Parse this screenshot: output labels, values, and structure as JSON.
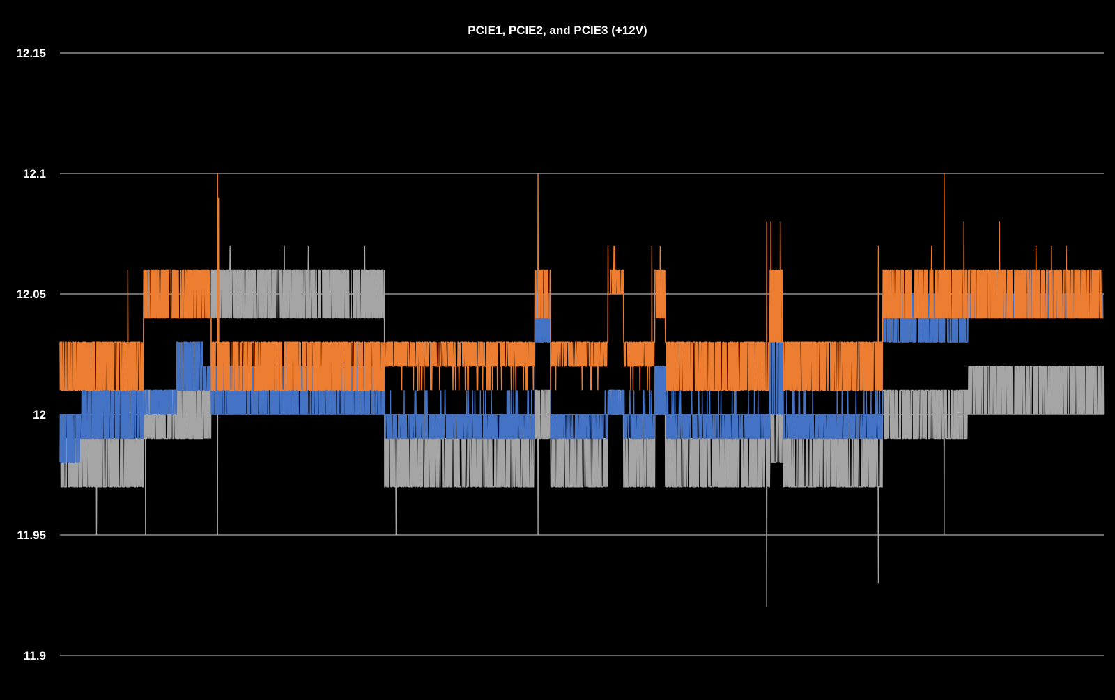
{
  "chart_data": {
    "type": "line",
    "title": "PCIE1, PCIE2, and PCIE3 (+12V)",
    "xlabel": "",
    "ylabel": "",
    "ylim": [
      11.9,
      12.15
    ],
    "yticks": [
      11.9,
      11.95,
      12,
      12.05,
      12.1,
      12.15
    ],
    "ytick_labels": [
      "11.9",
      "11.95",
      "12",
      "12.05",
      "12.1",
      "12.15"
    ],
    "grid": "horizontal",
    "legend": "none",
    "background": "#000000",
    "text_color": "#ffffff",
    "gridline_color": "#d9d9d9",
    "x_range": [
      0,
      1000
    ],
    "segments": [
      {
        "start": 0,
        "end": 20,
        "levels": {
          "orange": [
            12.01,
            12.03
          ],
          "blue": [
            11.98,
            12.0
          ],
          "gray": [
            11.97,
            11.99
          ]
        }
      },
      {
        "start": 20,
        "end": 47,
        "levels": {
          "orange": [
            12.01,
            12.03
          ],
          "blue": [
            11.99,
            12.01
          ],
          "gray": [
            11.97,
            11.99
          ]
        }
      },
      {
        "start": 47,
        "end": 70,
        "levels": {
          "orange": [
            12.01,
            12.03
          ],
          "blue": [
            11.99,
            12.01
          ],
          "gray": [
            11.97,
            11.99
          ]
        }
      },
      {
        "start": 70,
        "end": 80,
        "levels": {
          "orange": [
            12.01,
            12.03
          ],
          "blue": [
            11.99,
            12.01
          ],
          "gray": [
            11.97,
            11.99
          ]
        }
      },
      {
        "start": 80,
        "end": 112,
        "levels": {
          "orange": [
            12.04,
            12.06
          ],
          "blue": [
            12.0,
            12.01
          ],
          "gray": [
            11.99,
            12.01
          ]
        }
      },
      {
        "start": 112,
        "end": 137,
        "levels": {
          "orange": [
            12.04,
            12.06
          ],
          "blue": [
            12.01,
            12.03
          ],
          "gray": [
            11.99,
            12.01
          ]
        }
      },
      {
        "start": 137,
        "end": 145,
        "levels": {
          "orange": [
            12.04,
            12.06
          ],
          "blue": [
            12.01,
            12.02
          ],
          "gray": [
            11.99,
            12.01
          ]
        }
      },
      {
        "start": 145,
        "end": 159,
        "levels": {
          "orange": [
            12.01,
            12.03
          ],
          "blue": [
            12.0,
            12.02
          ],
          "gray": [
            12.04,
            12.06
          ]
        }
      },
      {
        "start": 159,
        "end": 311,
        "levels": {
          "orange": [
            12.01,
            12.03
          ],
          "blue": [
            12.0,
            12.02
          ],
          "gray": [
            12.04,
            12.06
          ]
        }
      },
      {
        "start": 311,
        "end": 415,
        "levels": {
          "orange": [
            12.02,
            12.03
          ],
          "blue": [
            11.99,
            12.0
          ],
          "gray": [
            11.97,
            11.99
          ]
        }
      },
      {
        "start": 415,
        "end": 455,
        "levels": {
          "orange": [
            12.02,
            12.03
          ],
          "blue": [
            11.99,
            12.0
          ],
          "gray": [
            11.97,
            11.99
          ]
        }
      },
      {
        "start": 455,
        "end": 470,
        "levels": {
          "orange": [
            12.04,
            12.06
          ],
          "blue": [
            12.03,
            12.05
          ],
          "gray": [
            11.99,
            12.01
          ]
        }
      },
      {
        "start": 470,
        "end": 525,
        "levels": {
          "orange": [
            12.02,
            12.03
          ],
          "blue": [
            11.99,
            12.0
          ],
          "gray": [
            11.97,
            11.99
          ]
        }
      },
      {
        "start": 525,
        "end": 540,
        "levels": {
          "orange": [
            12.05,
            12.06
          ],
          "blue": [
            12.0,
            12.01
          ],
          "gray": [
            12.0,
            12.01
          ]
        }
      },
      {
        "start": 540,
        "end": 570,
        "levels": {
          "orange": [
            12.02,
            12.03
          ],
          "blue": [
            11.99,
            12.0
          ],
          "gray": [
            11.97,
            11.99
          ]
        }
      },
      {
        "start": 570,
        "end": 580,
        "levels": {
          "orange": [
            12.04,
            12.06
          ],
          "blue": [
            12.0,
            12.02
          ],
          "gray": [
            12.0,
            12.01
          ]
        }
      },
      {
        "start": 580,
        "end": 680,
        "levels": {
          "orange": [
            12.01,
            12.03
          ],
          "blue": [
            11.99,
            12.0
          ],
          "gray": [
            11.97,
            11.99
          ]
        }
      },
      {
        "start": 680,
        "end": 693,
        "levels": {
          "orange": [
            12.03,
            12.06
          ],
          "blue": [
            12.0,
            12.04
          ],
          "gray": [
            11.98,
            12.0
          ]
        }
      },
      {
        "start": 693,
        "end": 788,
        "levels": {
          "orange": [
            12.01,
            12.03
          ],
          "blue": [
            11.99,
            12.0
          ],
          "gray": [
            11.97,
            11.99
          ]
        }
      },
      {
        "start": 788,
        "end": 870,
        "levels": {
          "orange": [
            12.04,
            12.06
          ],
          "blue": [
            12.03,
            12.05
          ],
          "gray": [
            11.99,
            12.01
          ]
        }
      },
      {
        "start": 870,
        "end": 1000,
        "levels": {
          "orange": [
            12.04,
            12.06
          ],
          "blue": [
            12.04,
            12.05
          ],
          "gray": [
            12.0,
            12.02
          ]
        }
      }
    ],
    "series": [
      {
        "name": "",
        "color": "#4472c4"
      },
      {
        "name": "",
        "color": "#ed7d31"
      },
      {
        "name": "",
        "color": "#a5a5a5"
      }
    ],
    "spikes": [
      {
        "x": 65,
        "series": "orange",
        "y": 12.06
      },
      {
        "x": 151,
        "series": "orange",
        "y": 12.1
      },
      {
        "x": 152,
        "series": "orange",
        "y": 12.09
      },
      {
        "x": 151,
        "series": "gray",
        "y": 11.95
      },
      {
        "x": 163,
        "series": "gray",
        "y": 12.07
      },
      {
        "x": 215,
        "series": "gray",
        "y": 12.07
      },
      {
        "x": 238,
        "series": "gray",
        "y": 12.07
      },
      {
        "x": 292,
        "series": "gray",
        "y": 12.07
      },
      {
        "x": 35,
        "series": "gray",
        "y": 11.95
      },
      {
        "x": 82,
        "series": "gray",
        "y": 11.95
      },
      {
        "x": 322,
        "series": "gray",
        "y": 11.95
      },
      {
        "x": 458,
        "series": "orange",
        "y": 12.1
      },
      {
        "x": 458,
        "series": "gray",
        "y": 11.95
      },
      {
        "x": 525,
        "series": "orange",
        "y": 12.07
      },
      {
        "x": 567,
        "series": "orange",
        "y": 12.07
      },
      {
        "x": 575,
        "series": "orange",
        "y": 12.07
      },
      {
        "x": 677,
        "series": "orange",
        "y": 12.08
      },
      {
        "x": 681,
        "series": "orange",
        "y": 12.08
      },
      {
        "x": 690,
        "series": "orange",
        "y": 12.08
      },
      {
        "x": 677,
        "series": "gray",
        "y": 11.92
      },
      {
        "x": 784,
        "series": "orange",
        "y": 12.07
      },
      {
        "x": 784,
        "series": "gray",
        "y": 11.93
      },
      {
        "x": 847,
        "series": "orange",
        "y": 12.1
      },
      {
        "x": 847,
        "series": "gray",
        "y": 11.95
      },
      {
        "x": 835,
        "series": "orange",
        "y": 12.07
      },
      {
        "x": 866,
        "series": "orange",
        "y": 12.08
      },
      {
        "x": 900,
        "series": "orange",
        "y": 12.08
      },
      {
        "x": 935,
        "series": "orange",
        "y": 12.07
      },
      {
        "x": 950,
        "series": "orange",
        "y": 12.07
      },
      {
        "x": 964,
        "series": "orange",
        "y": 12.07
      }
    ]
  }
}
